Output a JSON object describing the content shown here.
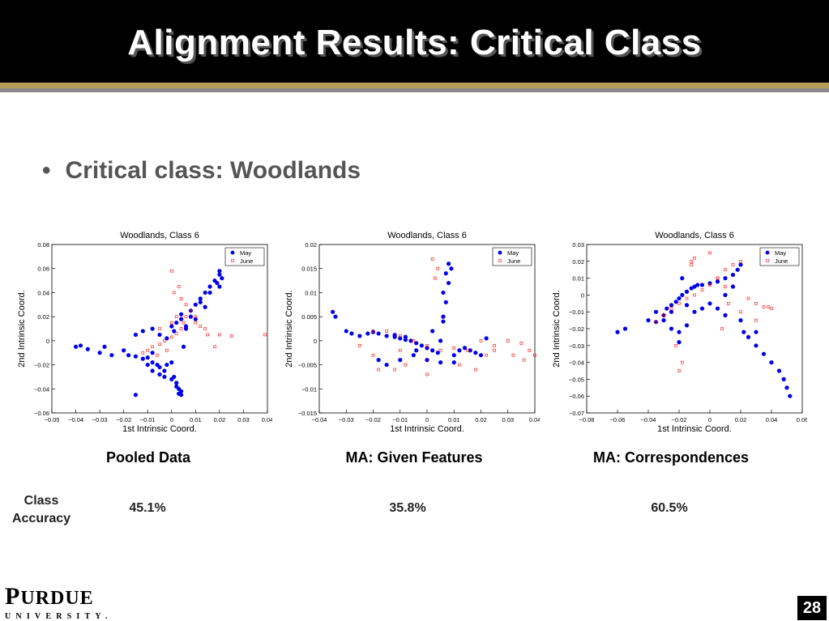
{
  "slide": {
    "title": "Alignment Results: Critical Class",
    "bullet": "Critical class: Woodlands",
    "captions": [
      "Pooled Data",
      "MA: Given Features",
      "MA: Correspondences"
    ],
    "class_accuracy_label": "Class Accuracy",
    "accuracies": [
      "45.1%",
      "35.8%",
      "60.5%"
    ],
    "logo_name_big": "P",
    "logo_name_rest": "URDUE",
    "logo_sub": "UNIVERSITY.",
    "page_number": "28",
    "colors": {
      "title_bg": "#000000",
      "gold": "#b39b5a",
      "grey": "#8a8a8a",
      "may": "#0000ee",
      "june": "#ff0000"
    }
  },
  "chart_data": [
    {
      "type": "scatter",
      "title": "Woodlands, Class 6",
      "xlabel": "1st Intrinsic Coord.",
      "ylabel": "2nd Intrinsic Coord.",
      "xlim": [
        -0.05,
        0.04
      ],
      "ylim": [
        -0.06,
        0.08
      ],
      "xticks": [
        "−0.05",
        "−0.04",
        "−0.03",
        "−0.02",
        "−0.01",
        "0",
        "0.01",
        "0.02",
        "0.03",
        "0.04"
      ],
      "yticks": [
        "−0.06",
        "−0.04",
        "−0.02",
        "0",
        "0.02",
        "0.04",
        "0.06",
        "0.08"
      ],
      "legend": [
        "May",
        "June"
      ],
      "legend_position": "top-right",
      "series": [
        {
          "name": "May",
          "marker": "filled-circle",
          "color": "#0000ee",
          "x": [
            -0.04,
            -0.038,
            -0.035,
            -0.03,
            -0.028,
            -0.025,
            -0.02,
            -0.018,
            -0.015,
            -0.012,
            -0.01,
            -0.008,
            -0.006,
            -0.005,
            -0.003,
            -0.002,
            0,
            0.001,
            0.002,
            0.003,
            0.004,
            0.005,
            0.006,
            0.008,
            0.01,
            0.012,
            0.014,
            0.016,
            0.018,
            0.02,
            0.02,
            0.021,
            -0.01,
            -0.008,
            -0.005,
            -0.003,
            0,
            0.002,
            0.003,
            0.004,
            -0.015,
            -0.012,
            -0.008,
            -0.005,
            0,
            0.004,
            0.004,
            0.002,
            0.001,
            -0.002,
            0.008,
            0.012,
            0.016,
            0.019,
            0.02,
            0.014,
            0.01,
            0.006,
            -0.008,
            -0.015
          ],
          "y": [
            -0.005,
            -0.004,
            -0.007,
            -0.01,
            -0.005,
            -0.012,
            -0.008,
            -0.012,
            -0.013,
            -0.015,
            -0.014,
            -0.018,
            -0.02,
            -0.022,
            -0.025,
            -0.02,
            -0.018,
            -0.03,
            -0.035,
            -0.04,
            -0.042,
            -0.005,
            0.01,
            0.02,
            0.03,
            0.035,
            0.04,
            0.045,
            0.05,
            0.055,
            0.058,
            0.052,
            -0.02,
            -0.025,
            -0.028,
            -0.03,
            -0.032,
            -0.038,
            -0.044,
            -0.045,
            0.005,
            0.008,
            0.01,
            0.005,
            0.012,
            0.018,
            0.022,
            0.015,
            0.008,
            0.002,
            0.025,
            0.032,
            0.04,
            0.048,
            0.045,
            0.028,
            0.018,
            0.012,
            -0.01,
            -0.045
          ]
        },
        {
          "name": "June",
          "marker": "open-square",
          "color": "#ff0000",
          "x": [
            -0.01,
            -0.008,
            -0.005,
            -0.003,
            0,
            0.002,
            0.004,
            0.005,
            0.006,
            0.008,
            0.01,
            0.012,
            0.015,
            0.02,
            0.025,
            0.039,
            -0.005,
            0,
            0.002,
            0.004,
            -0.002,
            0.001,
            0.003,
            0.006,
            0.01,
            0.014,
            0.018,
            -0.006,
            -0.012,
            0.0
          ],
          "y": [
            -0.008,
            -0.005,
            -0.003,
            0,
            0.003,
            0.006,
            0.01,
            0.015,
            0.02,
            0.025,
            0.02,
            0.012,
            0.005,
            0.005,
            0.004,
            0.005,
            0.01,
            0.015,
            0.02,
            0.035,
            -0.008,
            0.04,
            0.045,
            0.03,
            0.015,
            0.01,
            -0.005,
            -0.012,
            -0.01,
            0.058
          ]
        }
      ]
    },
    {
      "type": "scatter",
      "title": "Woodlands, Class 6",
      "xlabel": "1st Intrinsic Coord.",
      "ylabel": "2nd Intrinsic Coord.",
      "xlim": [
        -0.04,
        0.04
      ],
      "ylim": [
        -0.015,
        0.02
      ],
      "xticks": [
        "−0.04",
        "−0.03",
        "−0.02",
        "−0.01",
        "0",
        "0.01",
        "0.02",
        "0.03",
        "0.04"
      ],
      "yticks": [
        "−0.015",
        "−0.01",
        "−0.005",
        "0",
        "0.005",
        "0.01",
        "0.015",
        "0.02"
      ],
      "legend": [
        "May",
        "June"
      ],
      "legend_position": "top-right",
      "series": [
        {
          "name": "May",
          "marker": "filled-circle",
          "color": "#0000ee",
          "x": [
            -0.035,
            -0.034,
            -0.03,
            -0.028,
            -0.025,
            -0.022,
            -0.02,
            -0.018,
            -0.015,
            -0.012,
            -0.01,
            -0.008,
            -0.006,
            -0.004,
            -0.002,
            0,
            0.002,
            0.004,
            0.005,
            0.006,
            0.007,
            0.008,
            0.009,
            0.01,
            0.012,
            0.014,
            0.016,
            0.018,
            0.02,
            0.022,
            -0.018,
            -0.015,
            -0.01,
            -0.005,
            0,
            0.005,
            0.01,
            -0.012,
            -0.008,
            -0.004,
            0.002,
            0.006,
            0.008,
            0.007,
            0.006
          ],
          "y": [
            0.006,
            0.005,
            0.002,
            0.0015,
            0.001,
            0.0015,
            0.0018,
            0.0015,
            0.001,
            0.0008,
            0.0005,
            0.0002,
            0,
            -0.0005,
            -0.001,
            -0.0015,
            -0.002,
            -0.0025,
            0.0,
            0.005,
            0.008,
            0.012,
            0.015,
            -0.003,
            -0.002,
            -0.0015,
            -0.002,
            -0.0025,
            -0.003,
            0.0005,
            -0.004,
            -0.005,
            -0.004,
            -0.003,
            -0.004,
            -0.0045,
            -0.0045,
            0.0012,
            0.0008,
            -0.002,
            0.002,
            0.004,
            0.016,
            0.014,
            0.01
          ]
        },
        {
          "name": "June",
          "marker": "open-square",
          "color": "#ff0000",
          "x": [
            -0.025,
            -0.02,
            -0.015,
            -0.01,
            -0.005,
            0,
            0.005,
            0.01,
            0.015,
            0.02,
            0.025,
            0.03,
            0.035,
            0.038,
            0.04,
            -0.018,
            -0.012,
            -0.008,
            0.003,
            0.004,
            0.002,
            0.025,
            0.032,
            0.036,
            -0.02,
            -0.01,
            0.0,
            0.012,
            0.018,
            0.022
          ],
          "y": [
            -0.001,
            -0.003,
            0.002,
            -0.002,
            0.0,
            -0.001,
            -0.002,
            -0.0015,
            -0.002,
            0.0,
            -0.001,
            0.0,
            -0.0005,
            -0.002,
            -0.003,
            -0.006,
            -0.006,
            -0.005,
            0.013,
            0.015,
            0.017,
            -0.002,
            -0.003,
            -0.004,
            0.002,
            0.001,
            -0.007,
            -0.005,
            -0.006,
            -0.003
          ]
        }
      ]
    },
    {
      "type": "scatter",
      "title": "Woodlands, Class 6",
      "xlabel": "1st Intrinsic Coord.",
      "ylabel": "2nd Intrinsic Coord.",
      "xlim": [
        -0.08,
        0.06
      ],
      "ylim": [
        -0.07,
        0.03
      ],
      "xticks": [
        "−0.08",
        "−0.06",
        "−0.04",
        "−0.02",
        "0",
        "0.02",
        "0.04",
        "0.06"
      ],
      "yticks": [
        "−0.07",
        "−0.06",
        "−0.05",
        "−0.04",
        "−0.03",
        "−0.02",
        "−0.01",
        "0",
        "0.01",
        "0.02",
        "0.03"
      ],
      "legend": [
        "May",
        "June"
      ],
      "legend_position": "top-right",
      "series": [
        {
          "name": "May",
          "marker": "filled-circle",
          "color": "#0000ee",
          "x": [
            -0.06,
            -0.055,
            -0.04,
            -0.035,
            -0.03,
            -0.028,
            -0.025,
            -0.022,
            -0.02,
            -0.018,
            -0.015,
            -0.012,
            -0.01,
            -0.008,
            -0.005,
            0,
            0.005,
            0.01,
            0.015,
            0.018,
            0.02,
            0.022,
            0.025,
            0.03,
            0.035,
            0.04,
            0.045,
            0.048,
            0.05,
            0.052,
            -0.03,
            -0.025,
            -0.02,
            -0.015,
            -0.01,
            0,
            0.005,
            0.01,
            0.02,
            0.03,
            -0.035,
            -0.025,
            -0.015,
            -0.005,
            0.01,
            0.015,
            -0.02,
            -0.018
          ],
          "y": [
            -0.022,
            -0.02,
            -0.015,
            -0.016,
            -0.012,
            -0.008,
            -0.006,
            -0.004,
            -0.002,
            0.0,
            0.002,
            0.004,
            0.005,
            0.006,
            0.006,
            0.007,
            0.008,
            0.01,
            0.012,
            0.015,
            0.018,
            -0.022,
            -0.025,
            -0.03,
            -0.035,
            -0.04,
            -0.045,
            -0.05,
            -0.055,
            -0.06,
            -0.015,
            -0.02,
            -0.022,
            -0.018,
            -0.01,
            -0.005,
            -0.008,
            -0.012,
            -0.015,
            -0.022,
            -0.01,
            -0.01,
            -0.006,
            -0.008,
            0.0,
            0.005,
            -0.028,
            0.01
          ]
        },
        {
          "name": "June",
          "marker": "open-square",
          "color": "#ff0000",
          "x": [
            -0.035,
            -0.03,
            -0.025,
            -0.02,
            -0.015,
            -0.01,
            -0.005,
            0,
            0.005,
            0.01,
            0.015,
            0.02,
            0.025,
            0.03,
            0.035,
            0.04,
            -0.02,
            -0.018,
            -0.022,
            -0.012,
            0.0,
            0.005,
            0.01,
            0.02,
            0.03,
            0.038,
            -0.01,
            -0.012,
            0.012,
            0.008
          ],
          "y": [
            -0.016,
            -0.012,
            -0.008,
            -0.005,
            -0.002,
            0.0,
            0.003,
            0.006,
            0.01,
            0.015,
            0.018,
            0.02,
            -0.002,
            -0.005,
            -0.007,
            -0.008,
            -0.045,
            -0.04,
            -0.03,
            0.02,
            0.025,
            0.01,
            0.005,
            -0.01,
            -0.015,
            -0.007,
            0.022,
            0.018,
            -0.005,
            -0.02
          ]
        }
      ]
    }
  ]
}
